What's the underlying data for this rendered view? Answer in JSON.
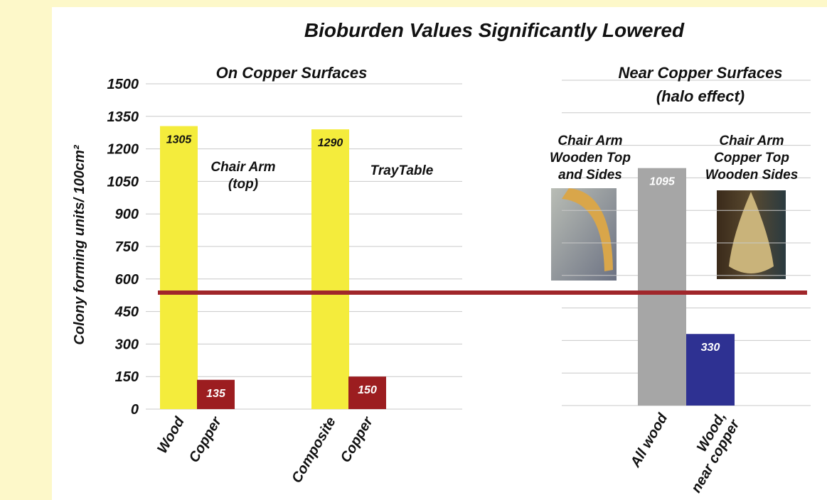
{
  "title": "Bioburden Values Significantly Lowered",
  "y_axis_label": "Colony forming units/ 100cm²",
  "reference_line": {
    "value": 537,
    "color": "#a0262a"
  },
  "chart_data": [
    {
      "type": "bar",
      "subtitle": [
        "On Copper Surfaces"
      ],
      "categories": [
        [
          "Wood"
        ],
        [
          "Copper"
        ],
        [
          "Composite"
        ],
        [
          "Copper"
        ]
      ],
      "values": [
        1305,
        135,
        1290,
        150
      ],
      "colors": [
        "#f4ec3c",
        "#9c1d20",
        "#f4ec3c",
        "#9c1d20"
      ],
      "ylim": [
        0,
        1500
      ],
      "yticks": [
        0,
        150,
        300,
        450,
        600,
        750,
        900,
        1050,
        1200,
        1350,
        1500
      ],
      "tick_labels": true,
      "grid": true,
      "annotations": [
        {
          "lines": [
            "Chair Arm",
            "(top)"
          ]
        },
        {
          "lines": [
            "TrayTable"
          ]
        }
      ]
    },
    {
      "type": "bar",
      "subtitle": [
        "Near Copper Surfaces",
        "(halo effect)"
      ],
      "categories": [
        [
          "All wood"
        ],
        [
          "Wood,",
          "near copper"
        ]
      ],
      "values": [
        1095,
        330
      ],
      "colors": [
        "#a6a6a6",
        "#2e3192"
      ],
      "ylim": [
        0,
        1500
      ],
      "yticks": [
        0,
        150,
        300,
        450,
        600,
        750,
        900,
        1050,
        1200,
        1350,
        1500
      ],
      "tick_labels": false,
      "grid": true,
      "annotations": [
        {
          "lines": [
            "Chair Arm",
            "Wooden Top",
            "and Sides"
          ]
        },
        {
          "lines": [
            "Chair Arm",
            "Copper Top",
            "Wooden Sides"
          ]
        }
      ]
    }
  ]
}
